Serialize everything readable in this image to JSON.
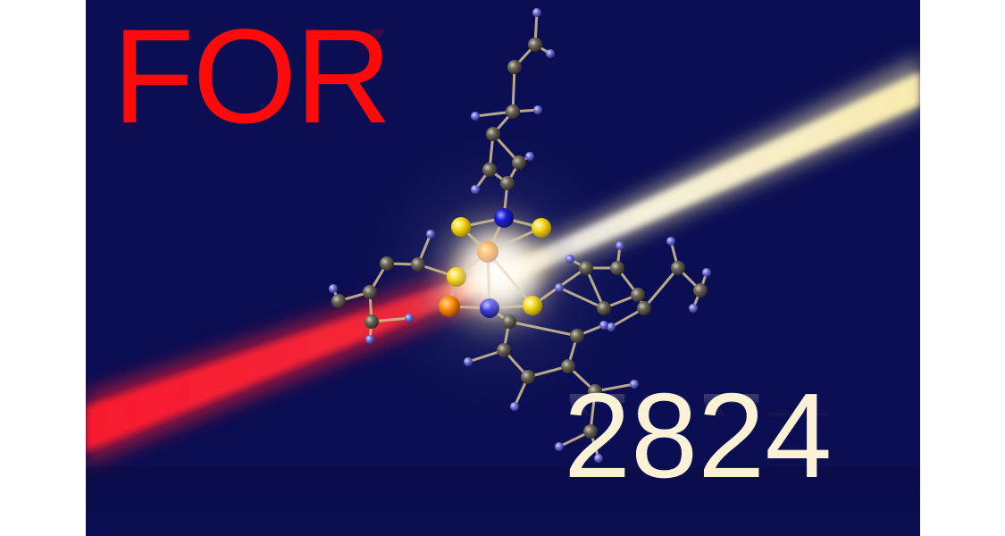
{
  "headline": {
    "word": "FOR",
    "number": "2824"
  },
  "colors": {
    "background": "#0b0e52",
    "headline_word": "#ff0a0a",
    "headline_number": "#fbf2d6",
    "carbon": "#6b6657",
    "hydrogen": "#6f6fd6",
    "nitrogen": "#1b1dd8",
    "sulfur": "#f4d60f",
    "metal": "#ff8c00",
    "bond": "#c9b98f",
    "red_beam": "#ff1a2e",
    "yellow_beam": "#fff1b0"
  },
  "illustration": {
    "subject": "molecule-structure",
    "beams": [
      "red-laser-beam",
      "yellow-laser-beam"
    ]
  }
}
